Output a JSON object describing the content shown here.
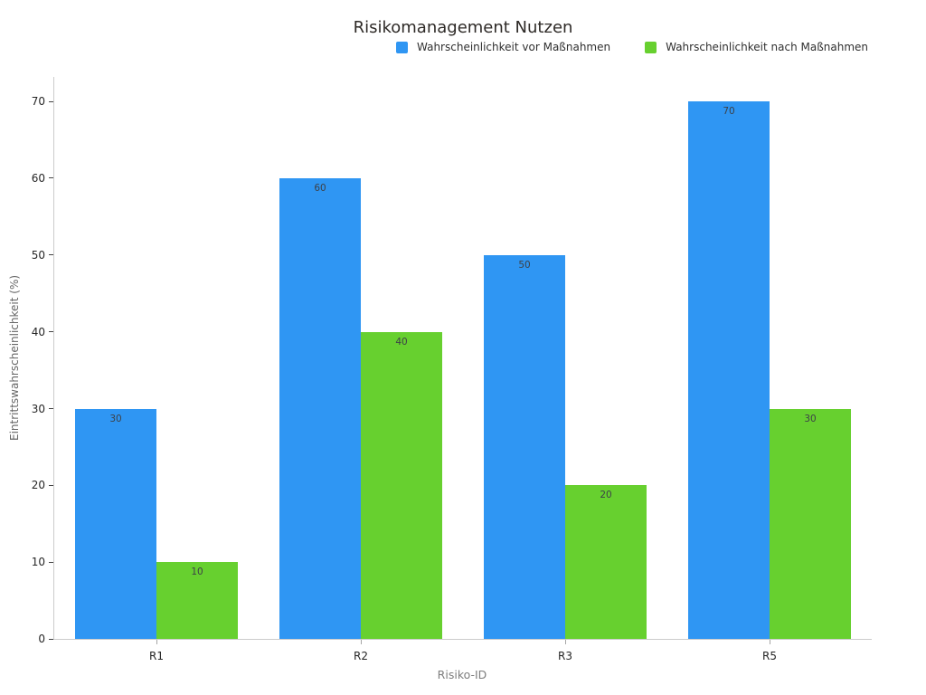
{
  "title": "Risikomanagement Nutzen",
  "colors": {
    "before": "#2f96f3",
    "after": "#67d02f",
    "axis_line": "#cbcbcb",
    "bar_label_text": "#3d4148"
  },
  "chart_data": {
    "type": "bar",
    "title": "Risikomanagement Nutzen",
    "categories": [
      "R1",
      "R2",
      "R3",
      "R5"
    ],
    "series": [
      {
        "name": "Wahrscheinlichkeit vor Maßnahmen",
        "color": "#2f96f3",
        "values": [
          30,
          60,
          50,
          70
        ]
      },
      {
        "name": "Wahrscheinlichkeit nach Maßnahmen",
        "color": "#67d02f",
        "values": [
          10,
          40,
          20,
          30
        ]
      }
    ],
    "xlabel": "Risiko-ID",
    "ylabel": "Eintrittswahrscheinlichkeit (%)",
    "ylim": [
      0,
      73.2
    ],
    "yticks": [
      0,
      10,
      20,
      30,
      40,
      50,
      60,
      70
    ],
    "grid": false,
    "legend_position": "top",
    "bar_labels": true
  }
}
